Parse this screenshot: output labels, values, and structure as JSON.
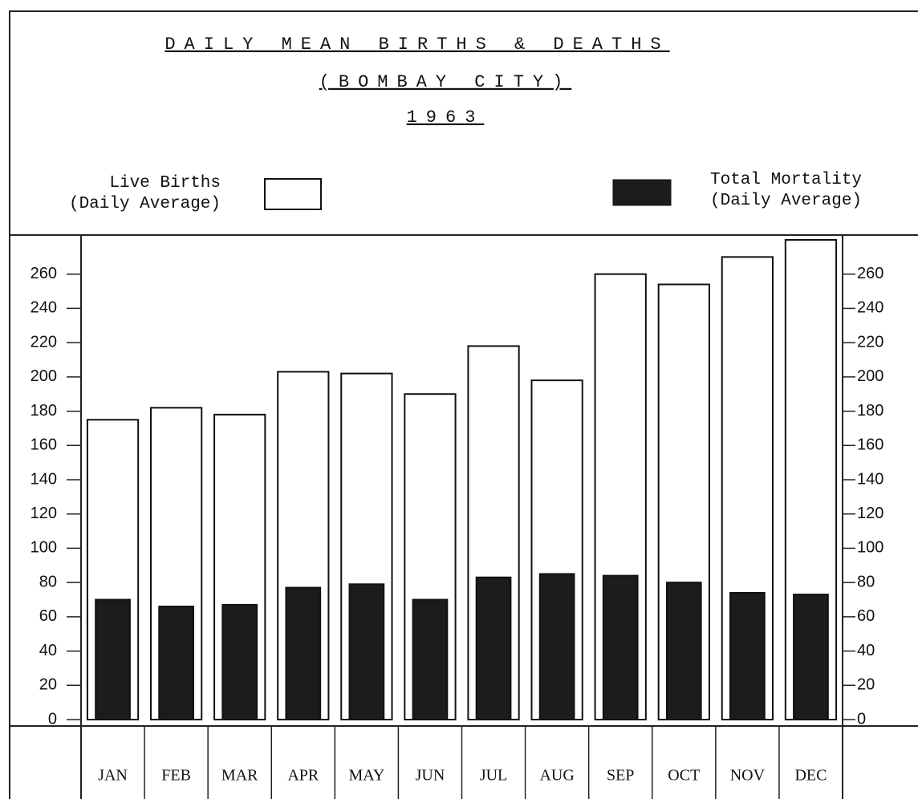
{
  "chart_data": {
    "type": "bar",
    "title": "DAILY MEAN BIRTHS & DEATHS",
    "subtitle": "(BOMBAY CITY)",
    "year": "1963",
    "categories": [
      "JAN",
      "FEB",
      "MAR",
      "APR",
      "MAY",
      "JUN",
      "JUL",
      "AUG",
      "SEP",
      "OCT",
      "NOV",
      "DEC"
    ],
    "series": [
      {
        "name": "Live Births (Daily Average)",
        "color": "#ffffff",
        "values": [
          175,
          182,
          178,
          203,
          202,
          190,
          218,
          198,
          260,
          254,
          270,
          280
        ]
      },
      {
        "name": "Total Mortality (Daily Average)",
        "color": "#1c1c1c",
        "values": [
          70,
          66,
          67,
          77,
          79,
          70,
          83,
          85,
          84,
          80,
          74,
          73
        ]
      }
    ],
    "ylim": [
      0,
      280
    ],
    "yticks": [
      0,
      20,
      40,
      60,
      80,
      100,
      120,
      140,
      160,
      180,
      200,
      220,
      240,
      260
    ]
  }
}
